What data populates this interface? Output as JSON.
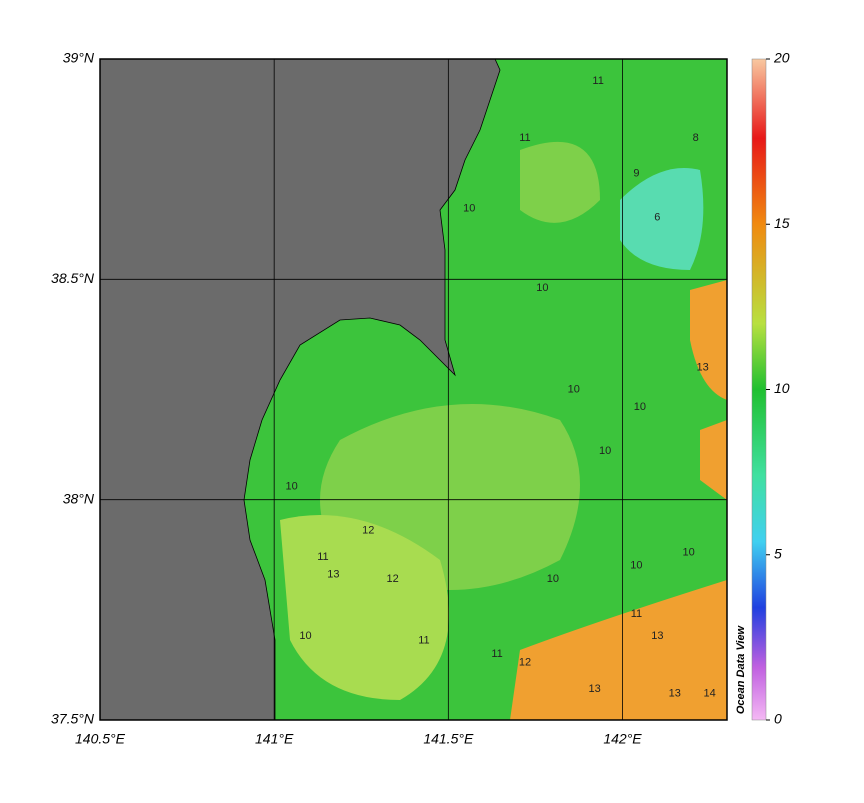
{
  "map": {
    "type": "contour-map",
    "xlim": [
      140.5,
      142.3
    ],
    "ylim": [
      37.5,
      39
    ],
    "xticks": [
      {
        "value": 140.5,
        "label": "140.5°E"
      },
      {
        "value": 141,
        "label": "141°E"
      },
      {
        "value": 141.5,
        "label": "141.5°E"
      },
      {
        "value": 142,
        "label": "142°E"
      }
    ],
    "yticks": [
      {
        "value": 37.5,
        "label": "37.5°N"
      },
      {
        "value": 38,
        "label": "38°N"
      },
      {
        "value": 38.5,
        "label": "38.5°N"
      },
      {
        "value": 39,
        "label": "39°N"
      }
    ],
    "grid": true,
    "colorbar": {
      "lim": [
        0,
        20
      ],
      "ticks": [
        0,
        5,
        10,
        15,
        20
      ],
      "label": "Ocean Data View"
    },
    "contour_labels": [
      {
        "value": 11,
        "lon": 141.93,
        "lat": 38.95
      },
      {
        "value": 11,
        "lon": 141.72,
        "lat": 38.82
      },
      {
        "value": 10,
        "lon": 141.56,
        "lat": 38.66
      },
      {
        "value": 8,
        "lon": 142.21,
        "lat": 38.82
      },
      {
        "value": 9,
        "lon": 142.04,
        "lat": 38.74
      },
      {
        "value": 6,
        "lon": 142.1,
        "lat": 38.64
      },
      {
        "value": 10,
        "lon": 141.77,
        "lat": 38.48
      },
      {
        "value": 10,
        "lon": 141.86,
        "lat": 38.25
      },
      {
        "value": 10,
        "lon": 141.95,
        "lat": 38.11
      },
      {
        "value": 10,
        "lon": 141.05,
        "lat": 38.03
      },
      {
        "value": 10,
        "lon": 142.05,
        "lat": 38.21
      },
      {
        "value": 12,
        "lon": 141.27,
        "lat": 37.93
      },
      {
        "value": 11,
        "lon": 141.14,
        "lat": 37.87
      },
      {
        "value": 13,
        "lon": 141.17,
        "lat": 37.83
      },
      {
        "value": 12,
        "lon": 141.34,
        "lat": 37.82
      },
      {
        "value": 10,
        "lon": 141.8,
        "lat": 37.82
      },
      {
        "value": 10,
        "lon": 142.04,
        "lat": 37.85
      },
      {
        "value": 10,
        "lon": 142.19,
        "lat": 37.88
      },
      {
        "value": 10,
        "lon": 141.09,
        "lat": 37.69
      },
      {
        "value": 11,
        "lon": 141.43,
        "lat": 37.68
      },
      {
        "value": 11,
        "lon": 141.64,
        "lat": 37.65
      },
      {
        "value": 12,
        "lon": 141.72,
        "lat": 37.63
      },
      {
        "value": 11,
        "lon": 142.04,
        "lat": 37.74
      },
      {
        "value": 13,
        "lon": 142.1,
        "lat": 37.69
      },
      {
        "value": 13,
        "lon": 141.92,
        "lat": 37.57
      },
      {
        "value": 13,
        "lon": 142.15,
        "lat": 37.56
      },
      {
        "value": 14,
        "lon": 142.25,
        "lat": 37.56
      },
      {
        "value": 13,
        "lon": 142.23,
        "lat": 38.3
      }
    ]
  }
}
